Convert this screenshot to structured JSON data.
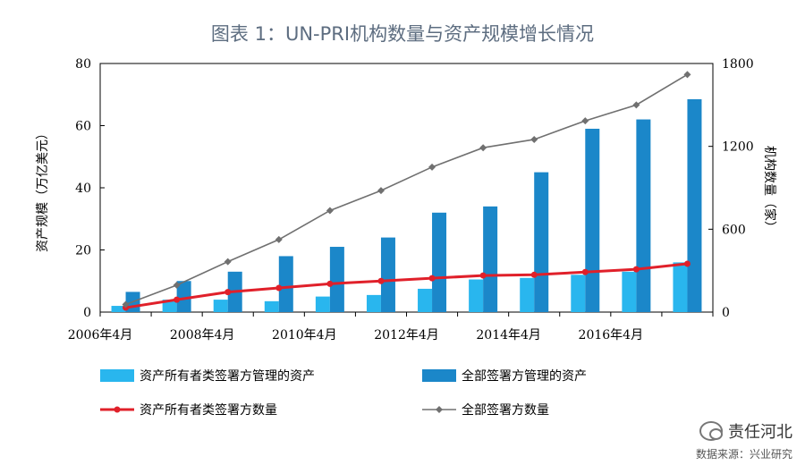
{
  "title": "图表 1：UN-PRI机构数量与资产规模增长情况",
  "watermark": {
    "brand": "责任河北",
    "source": "数据来源：兴业研究"
  },
  "chart_data": {
    "type": "bar",
    "left_axis": {
      "label": "资产规模（万亿美元）",
      "min": 0,
      "max": 80,
      "ticks": [
        0,
        20,
        40,
        60,
        80
      ]
    },
    "right_axis": {
      "label": "机构数量（家）",
      "min": 0,
      "max": 1800,
      "ticks": [
        0,
        600,
        1200,
        1800
      ]
    },
    "x_tick_labels": [
      "2006年4月",
      "2008年4月",
      "2010年4月",
      "2012年4月",
      "2014年4月",
      "2016年4月"
    ],
    "x_tick_category_index": [
      0,
      2,
      4,
      6,
      8,
      10
    ],
    "categories": [
      "2006",
      "2007",
      "2008",
      "2009",
      "2010",
      "2011",
      "2012",
      "2013",
      "2014",
      "2015",
      "2016",
      "2017"
    ],
    "series": [
      {
        "name": "资产所有者类签署方管理的资产",
        "kind": "bar",
        "axis": "left",
        "color": "#29b6ee",
        "values": [
          2,
          4,
          4,
          3.5,
          5,
          5.5,
          7.5,
          10.5,
          11,
          12,
          13,
          16
        ]
      },
      {
        "name": "全部签署方管理的资产",
        "kind": "bar",
        "axis": "left",
        "color": "#1b87c9",
        "values": [
          6.5,
          10,
          13,
          18,
          21,
          24,
          32,
          34,
          45,
          59,
          62,
          68.5
        ]
      },
      {
        "name": "资产所有者类签署方数量",
        "kind": "line",
        "axis": "right",
        "color": "#e0202a",
        "values": [
          32,
          90,
          145,
          175,
          205,
          225,
          245,
          265,
          270,
          290,
          310,
          350
        ]
      },
      {
        "name": "全部签署方数量",
        "kind": "line",
        "axis": "right",
        "color": "#707070",
        "values": [
          55,
          195,
          365,
          525,
          735,
          880,
          1050,
          1190,
          1250,
          1385,
          1500,
          1720
        ]
      }
    ],
    "legend_position": "bottom"
  }
}
